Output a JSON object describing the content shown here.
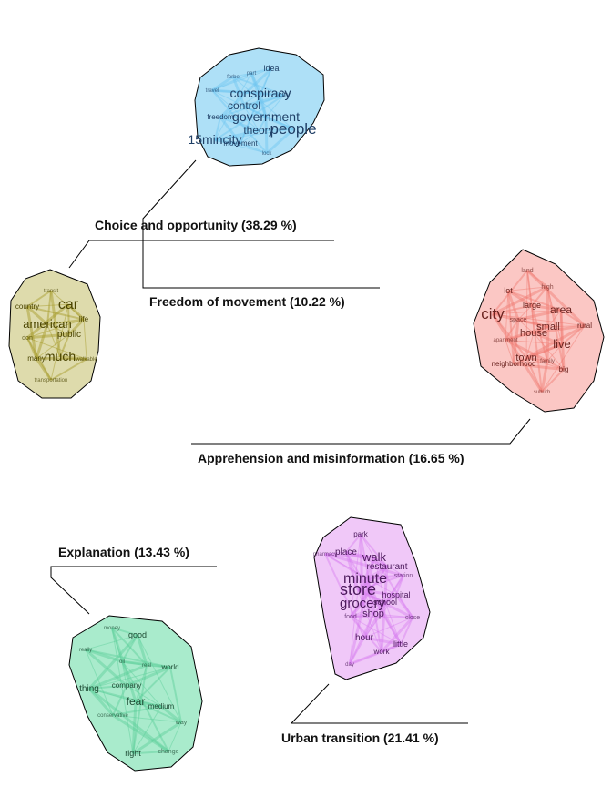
{
  "clusters": [
    {
      "id": "freedom",
      "label": "Freedom of movement (10.22 %)",
      "color_fill": "#aee0f7",
      "color_edge": "#6ec6f0",
      "color_text": "#1f3f66",
      "words": [
        "idea",
        "part",
        "forbe",
        "travel",
        "conspiracy",
        "city",
        "control",
        "government",
        "freedom",
        "theory",
        "people",
        "15mincity",
        "movement",
        "lock"
      ]
    },
    {
      "id": "choice",
      "label": "Choice and opportunity (38.29 %)",
      "color_fill": "#dedbac",
      "color_edge": "#a39a25",
      "color_text": "#4a4400",
      "words": [
        "transit",
        "country",
        "car",
        "life",
        "american",
        "public",
        "don",
        "many",
        "much",
        "walkable",
        "transportation"
      ]
    },
    {
      "id": "apprehension",
      "label": "Apprehension and misinformation (16.65 %)",
      "color_fill": "#fbc7c4",
      "color_edge": "#f07a72",
      "color_text": "#6b2420",
      "words": [
        "land",
        "high",
        "lot",
        "large",
        "city",
        "area",
        "space",
        "small",
        "rural",
        "house",
        "apartment",
        "live",
        "town",
        "family",
        "neighborhood",
        "big",
        "suburb"
      ]
    },
    {
      "id": "explanation",
      "label": "Explanation (13.43 %)",
      "color_fill": "#a9ebcc",
      "color_edge": "#5ccf98",
      "color_text": "#1d4a33",
      "words": [
        "money",
        "good",
        "really",
        "oil",
        "real",
        "world",
        "company",
        "thing",
        "fear",
        "medium",
        "conservative",
        "way",
        "right",
        "change"
      ]
    },
    {
      "id": "urban",
      "label": "Urban transition (21.41 %)",
      "color_fill": "#f0c8f8",
      "color_edge": "#d77ef0",
      "color_text": "#4c1a5c",
      "words": [
        "park",
        "place",
        "pharmacy",
        "walk",
        "restaurant",
        "minute",
        "station",
        "store",
        "grocery",
        "school",
        "hospital",
        "shop",
        "food",
        "close",
        "hour",
        "little",
        "work",
        "day"
      ]
    }
  ]
}
